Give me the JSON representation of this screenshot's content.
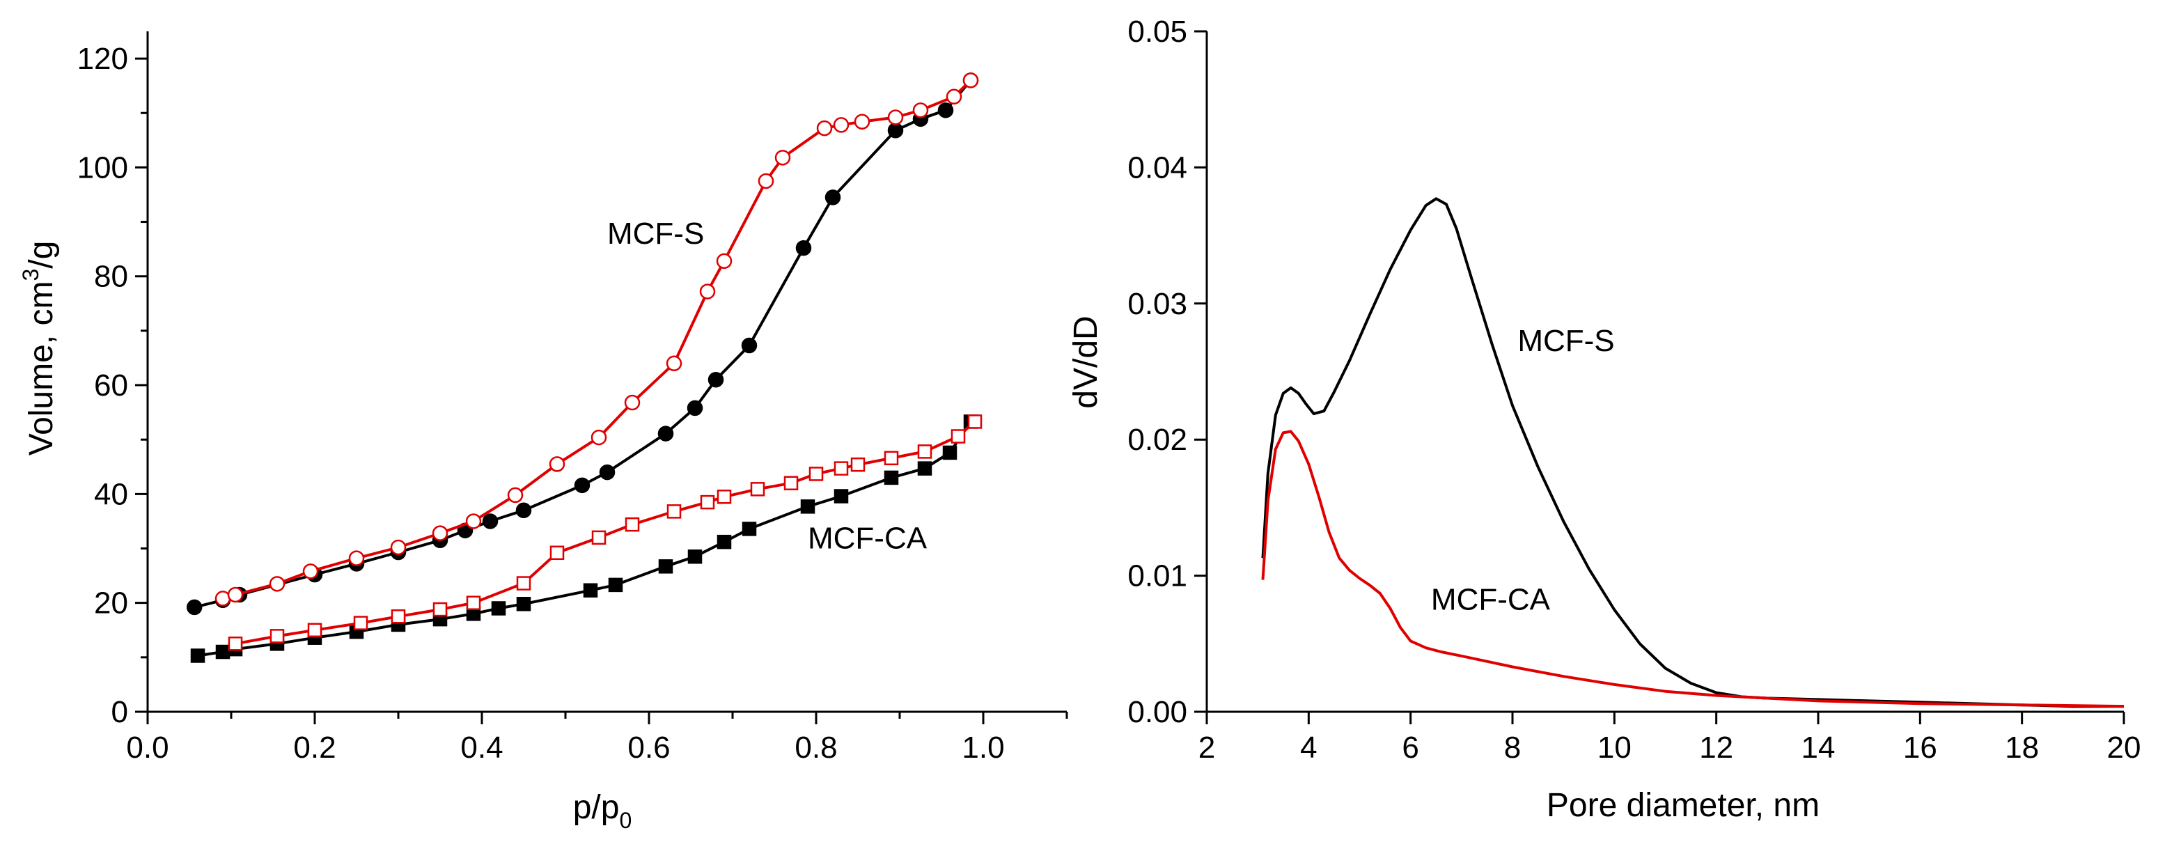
{
  "chart_data": [
    {
      "type": "line",
      "xlabel": "p/p",
      "xlabel_sub": "0",
      "ylabel": "Volume, cm",
      "ylabel_sup": "3",
      "ylabel_suffix": "/g",
      "xlim": [
        0.0,
        1.1
      ],
      "ylim": [
        0,
        125
      ],
      "x_ticks": [
        "0.0",
        "0.2",
        "0.4",
        "0.6",
        "0.8",
        "1.0"
      ],
      "x_tick_values": [
        0.0,
        0.2,
        0.4,
        0.6,
        0.8,
        1.0
      ],
      "y_ticks": [
        "0",
        "20",
        "40",
        "60",
        "80",
        "100",
        "120"
      ],
      "y_tick_values": [
        0,
        20,
        40,
        60,
        80,
        100,
        120
      ],
      "annotations": [
        {
          "text": "MCF-S",
          "x": 0.55,
          "y": 86
        },
        {
          "text": "MCF-CA",
          "x": 0.79,
          "y": 30
        }
      ],
      "series": [
        {
          "color": "#000000",
          "marker": "circle",
          "filled": true,
          "x": [
            0.056,
            0.09,
            0.11,
            0.2,
            0.25,
            0.3,
            0.35,
            0.38,
            0.41,
            0.45,
            0.52,
            0.55,
            0.62,
            0.655,
            0.68,
            0.72,
            0.785,
            0.82,
            0.895,
            0.925,
            0.955,
            0.985
          ],
          "y": [
            19.2,
            20.5,
            21.5,
            25.2,
            27.2,
            29.3,
            31.5,
            33.3,
            35.0,
            37.0,
            41.6,
            44.0,
            51.1,
            55.8,
            61.0,
            67.3,
            85.2,
            94.5,
            106.8,
            108.9,
            110.5,
            116.0
          ]
        },
        {
          "color": "#e00000",
          "marker": "circle",
          "filled": false,
          "x": [
            0.09,
            0.105,
            0.155,
            0.195,
            0.25,
            0.3,
            0.35,
            0.39,
            0.44,
            0.49,
            0.54,
            0.58,
            0.63,
            0.67,
            0.69,
            0.74,
            0.76,
            0.81,
            0.83,
            0.855,
            0.895,
            0.925,
            0.965,
            0.985
          ],
          "y": [
            20.8,
            21.5,
            23.5,
            25.8,
            28.2,
            30.2,
            32.8,
            35.0,
            39.8,
            45.5,
            50.4,
            56.8,
            64.0,
            77.2,
            82.8,
            97.5,
            101.8,
            107.2,
            107.8,
            108.4,
            109.2,
            110.5,
            113.0,
            116.0
          ]
        },
        {
          "color": "#000000",
          "marker": "square",
          "filled": true,
          "x": [
            0.06,
            0.09,
            0.105,
            0.155,
            0.2,
            0.25,
            0.3,
            0.35,
            0.39,
            0.42,
            0.45,
            0.53,
            0.56,
            0.62,
            0.655,
            0.69,
            0.72,
            0.79,
            0.83,
            0.89,
            0.93,
            0.96,
            0.985
          ],
          "y": [
            10.3,
            11.0,
            11.5,
            12.5,
            13.6,
            14.7,
            16.0,
            17.0,
            18.0,
            19.0,
            19.8,
            22.3,
            23.3,
            26.7,
            28.5,
            31.2,
            33.6,
            37.7,
            39.6,
            43.0,
            44.7,
            47.6,
            53.3
          ]
        },
        {
          "color": "#e00000",
          "marker": "square",
          "filled": false,
          "x": [
            0.105,
            0.155,
            0.2,
            0.255,
            0.3,
            0.35,
            0.39,
            0.45,
            0.49,
            0.54,
            0.58,
            0.63,
            0.67,
            0.69,
            0.73,
            0.77,
            0.8,
            0.83,
            0.85,
            0.89,
            0.93,
            0.97,
            0.99
          ],
          "y": [
            12.5,
            13.9,
            15.0,
            16.3,
            17.5,
            18.8,
            20.0,
            23.6,
            29.2,
            32.0,
            34.4,
            36.8,
            38.5,
            39.5,
            40.9,
            42.0,
            43.7,
            44.7,
            45.4,
            46.6,
            47.8,
            50.6,
            53.3
          ]
        }
      ]
    },
    {
      "type": "line",
      "xlabel": "Pore diameter, nm",
      "ylabel": "dV/dD",
      "xlim": [
        2,
        20
      ],
      "ylim": [
        0,
        0.05
      ],
      "x_ticks": [
        "2",
        "4",
        "6",
        "8",
        "10",
        "12",
        "14",
        "16",
        "18",
        "20"
      ],
      "x_tick_values": [
        2,
        4,
        6,
        8,
        10,
        12,
        14,
        16,
        18,
        20
      ],
      "y_ticks": [
        "0.00",
        "0.01",
        "0.02",
        "0.03",
        "0.04",
        "0.05"
      ],
      "y_tick_values": [
        0,
        0.01,
        0.02,
        0.03,
        0.04,
        0.05
      ],
      "annotations": [
        {
          "text": "MCF-S",
          "x": 8.1,
          "y": 0.0265
        },
        {
          "text": "MCF-CA",
          "x": 6.4,
          "y": 0.0075
        }
      ],
      "series": [
        {
          "color": "#000000",
          "x": [
            3.1,
            3.2,
            3.35,
            3.5,
            3.65,
            3.8,
            3.95,
            4.1,
            4.3,
            4.5,
            4.8,
            5.2,
            5.6,
            6.0,
            6.3,
            6.5,
            6.7,
            6.9,
            7.2,
            7.6,
            8.0,
            8.5,
            9.0,
            9.5,
            10.0,
            10.5,
            11.0,
            11.5,
            12.0,
            12.5,
            13.0,
            14.0,
            15.0,
            16.0,
            17.0,
            18.0,
            19.0,
            20.0
          ],
          "y": [
            0.0113,
            0.0175,
            0.0218,
            0.0234,
            0.0238,
            0.0234,
            0.0226,
            0.0219,
            0.0221,
            0.0235,
            0.0258,
            0.0292,
            0.0325,
            0.0354,
            0.0372,
            0.0377,
            0.0373,
            0.0355,
            0.0318,
            0.027,
            0.0225,
            0.018,
            0.014,
            0.0105,
            0.0075,
            0.005,
            0.0032,
            0.0021,
            0.0014,
            0.0011,
            0.001,
            0.0009,
            0.0008,
            0.0007,
            0.0006,
            0.0005,
            0.0004,
            0.0004
          ]
        },
        {
          "color": "#e00000",
          "x": [
            3.1,
            3.2,
            3.35,
            3.5,
            3.65,
            3.8,
            4.0,
            4.2,
            4.4,
            4.6,
            4.8,
            5.0,
            5.2,
            5.4,
            5.6,
            5.8,
            6.0,
            6.3,
            6.6,
            7.0,
            7.5,
            8.0,
            9.0,
            10.0,
            11.0,
            12.0,
            13.0,
            14.0,
            16.0,
            18.0,
            20.0
          ],
          "y": [
            0.0097,
            0.0155,
            0.0193,
            0.0205,
            0.0206,
            0.0199,
            0.0182,
            0.0158,
            0.0132,
            0.0113,
            0.0104,
            0.0098,
            0.0093,
            0.0087,
            0.0076,
            0.0062,
            0.0052,
            0.0047,
            0.0044,
            0.0041,
            0.0037,
            0.0033,
            0.0026,
            0.002,
            0.0015,
            0.0012,
            0.001,
            0.0008,
            0.0006,
            0.0005,
            0.0004
          ]
        }
      ]
    }
  ]
}
